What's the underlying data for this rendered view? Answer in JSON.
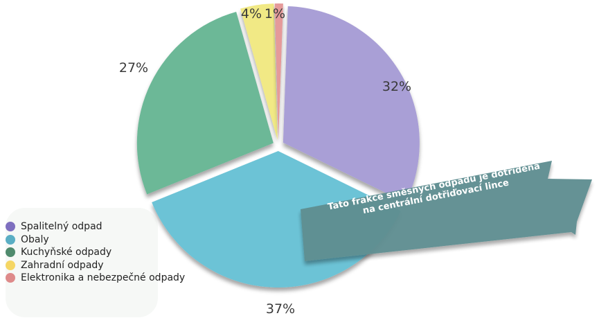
{
  "chart_data": {
    "type": "pie",
    "categories": [
      "Spalitelný odpad",
      "Obaly",
      "Kuchyňské odpady",
      "Zahradní odpady",
      "Elektronika a nebezpečné odpady"
    ],
    "values": [
      32,
      37,
      27,
      4,
      1
    ],
    "value_labels": [
      "32%",
      "37%",
      "27%",
      "4%",
      "1%"
    ],
    "colors": [
      "#a99fd6",
      "#6cc3d6",
      "#6cb897",
      "#f1e985",
      "#e59a9a"
    ],
    "legend_colors": [
      "#7e6fbf",
      "#5aaec4",
      "#4f8a6d",
      "#f5d664",
      "#de8a8a"
    ],
    "legend_position": "bottom-left",
    "start_angle_deg": 2
  },
  "annotation": {
    "text": "Tato frakce směsných odpadů je dotříděna na centrální dotřiďovací lince",
    "color": "#5e8e91"
  }
}
